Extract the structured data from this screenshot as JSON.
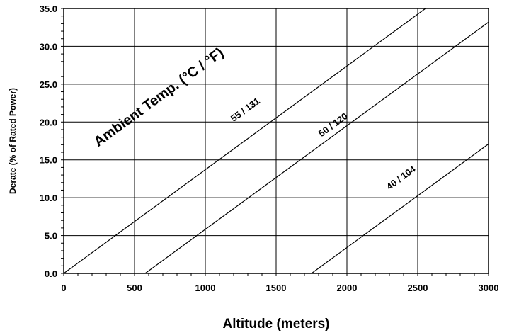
{
  "chart_data": {
    "type": "line",
    "xlabel": "Altitude (meters)",
    "ylabel": "Derate (% of Rated Power)",
    "annotation": "Ambient Temp. (°C / °F)",
    "xlim": [
      0,
      3000
    ],
    "ylim": [
      0,
      35
    ],
    "x_ticks": [
      0,
      500,
      1000,
      1500,
      2000,
      2500,
      3000
    ],
    "x_tick_labels": [
      "0",
      "500",
      "1000",
      "1500",
      "2000",
      "2500",
      "3000"
    ],
    "y_ticks": [
      0,
      5,
      10,
      15,
      20,
      25,
      30,
      35
    ],
    "y_tick_labels": [
      "0.0",
      "5.0",
      "10.0",
      "15.0",
      "20.0",
      "25.0",
      "30.0",
      "35.0"
    ],
    "grid": true,
    "series": [
      {
        "name": "55 / 131",
        "x": [
          0,
          2555
        ],
        "y": [
          0,
          35
        ],
        "label_at": [
          1200,
          20
        ]
      },
      {
        "name": "50 / 120",
        "x": [
          575,
          3000
        ],
        "y": [
          0,
          33.2
        ],
        "label_at": [
          1820,
          18
        ]
      },
      {
        "name": "40 / 104",
        "x": [
          1750,
          3000
        ],
        "y": [
          0,
          17.1
        ],
        "label_at": [
          2300,
          11
        ]
      }
    ]
  }
}
